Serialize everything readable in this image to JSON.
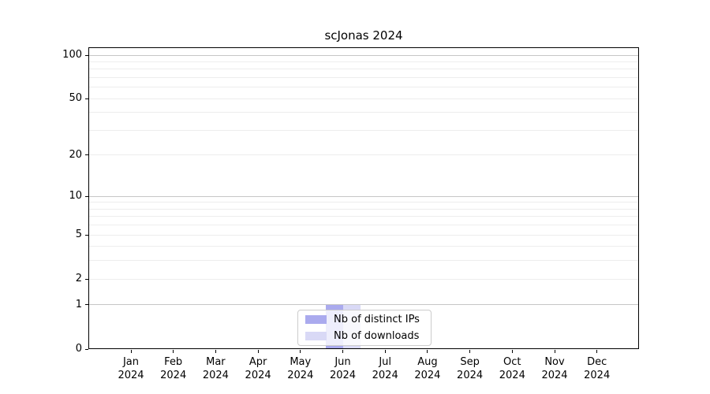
{
  "chart_data": {
    "type": "bar",
    "title": "scJonas 2024",
    "categories": [
      "Jan 2024",
      "Feb 2024",
      "Mar 2024",
      "Apr 2024",
      "May 2024",
      "Jun 2024",
      "Jul 2024",
      "Aug 2024",
      "Sep 2024",
      "Oct 2024",
      "Nov 2024",
      "Dec 2024"
    ],
    "series": [
      {
        "name": "Nb of distinct IPs",
        "color": "#aaaaee",
        "values": [
          0,
          0,
          0,
          0,
          0,
          1,
          0,
          0,
          0,
          0,
          0,
          0
        ]
      },
      {
        "name": "Nb of downloads",
        "color": "#d9d9f6",
        "values": [
          0,
          0,
          0,
          0,
          0,
          1,
          0,
          0,
          0,
          0,
          0,
          0
        ]
      }
    ],
    "xlabel": "",
    "ylabel": "",
    "y_axis": {
      "scale": "log1p",
      "ylim": [
        0,
        112
      ],
      "tick_values": [
        0,
        1,
        2,
        5,
        10,
        20,
        50,
        100
      ],
      "tick_labels": [
        "0",
        "1",
        "2",
        "5",
        "10",
        "20",
        "50",
        "100"
      ],
      "major_grid_values": [
        1,
        10,
        100
      ],
      "minor_grid_values": [
        3,
        4,
        6,
        7,
        8,
        9,
        30,
        40,
        60,
        70,
        80,
        90
      ]
    },
    "grid": true,
    "legend": {
      "position": "lower center",
      "entries": [
        "Nb of distinct IPs",
        "Nb of downloads"
      ]
    }
  },
  "colors": {
    "background": "#ffffff",
    "axis": "#000000",
    "text": "#000000",
    "major_grid": "#c6c6c6",
    "minor_grid": "#ededed",
    "legend_border": "#cccccc",
    "distinct_ips_bar": "#aaaaee",
    "downloads_bar": "#d9d9f6"
  }
}
